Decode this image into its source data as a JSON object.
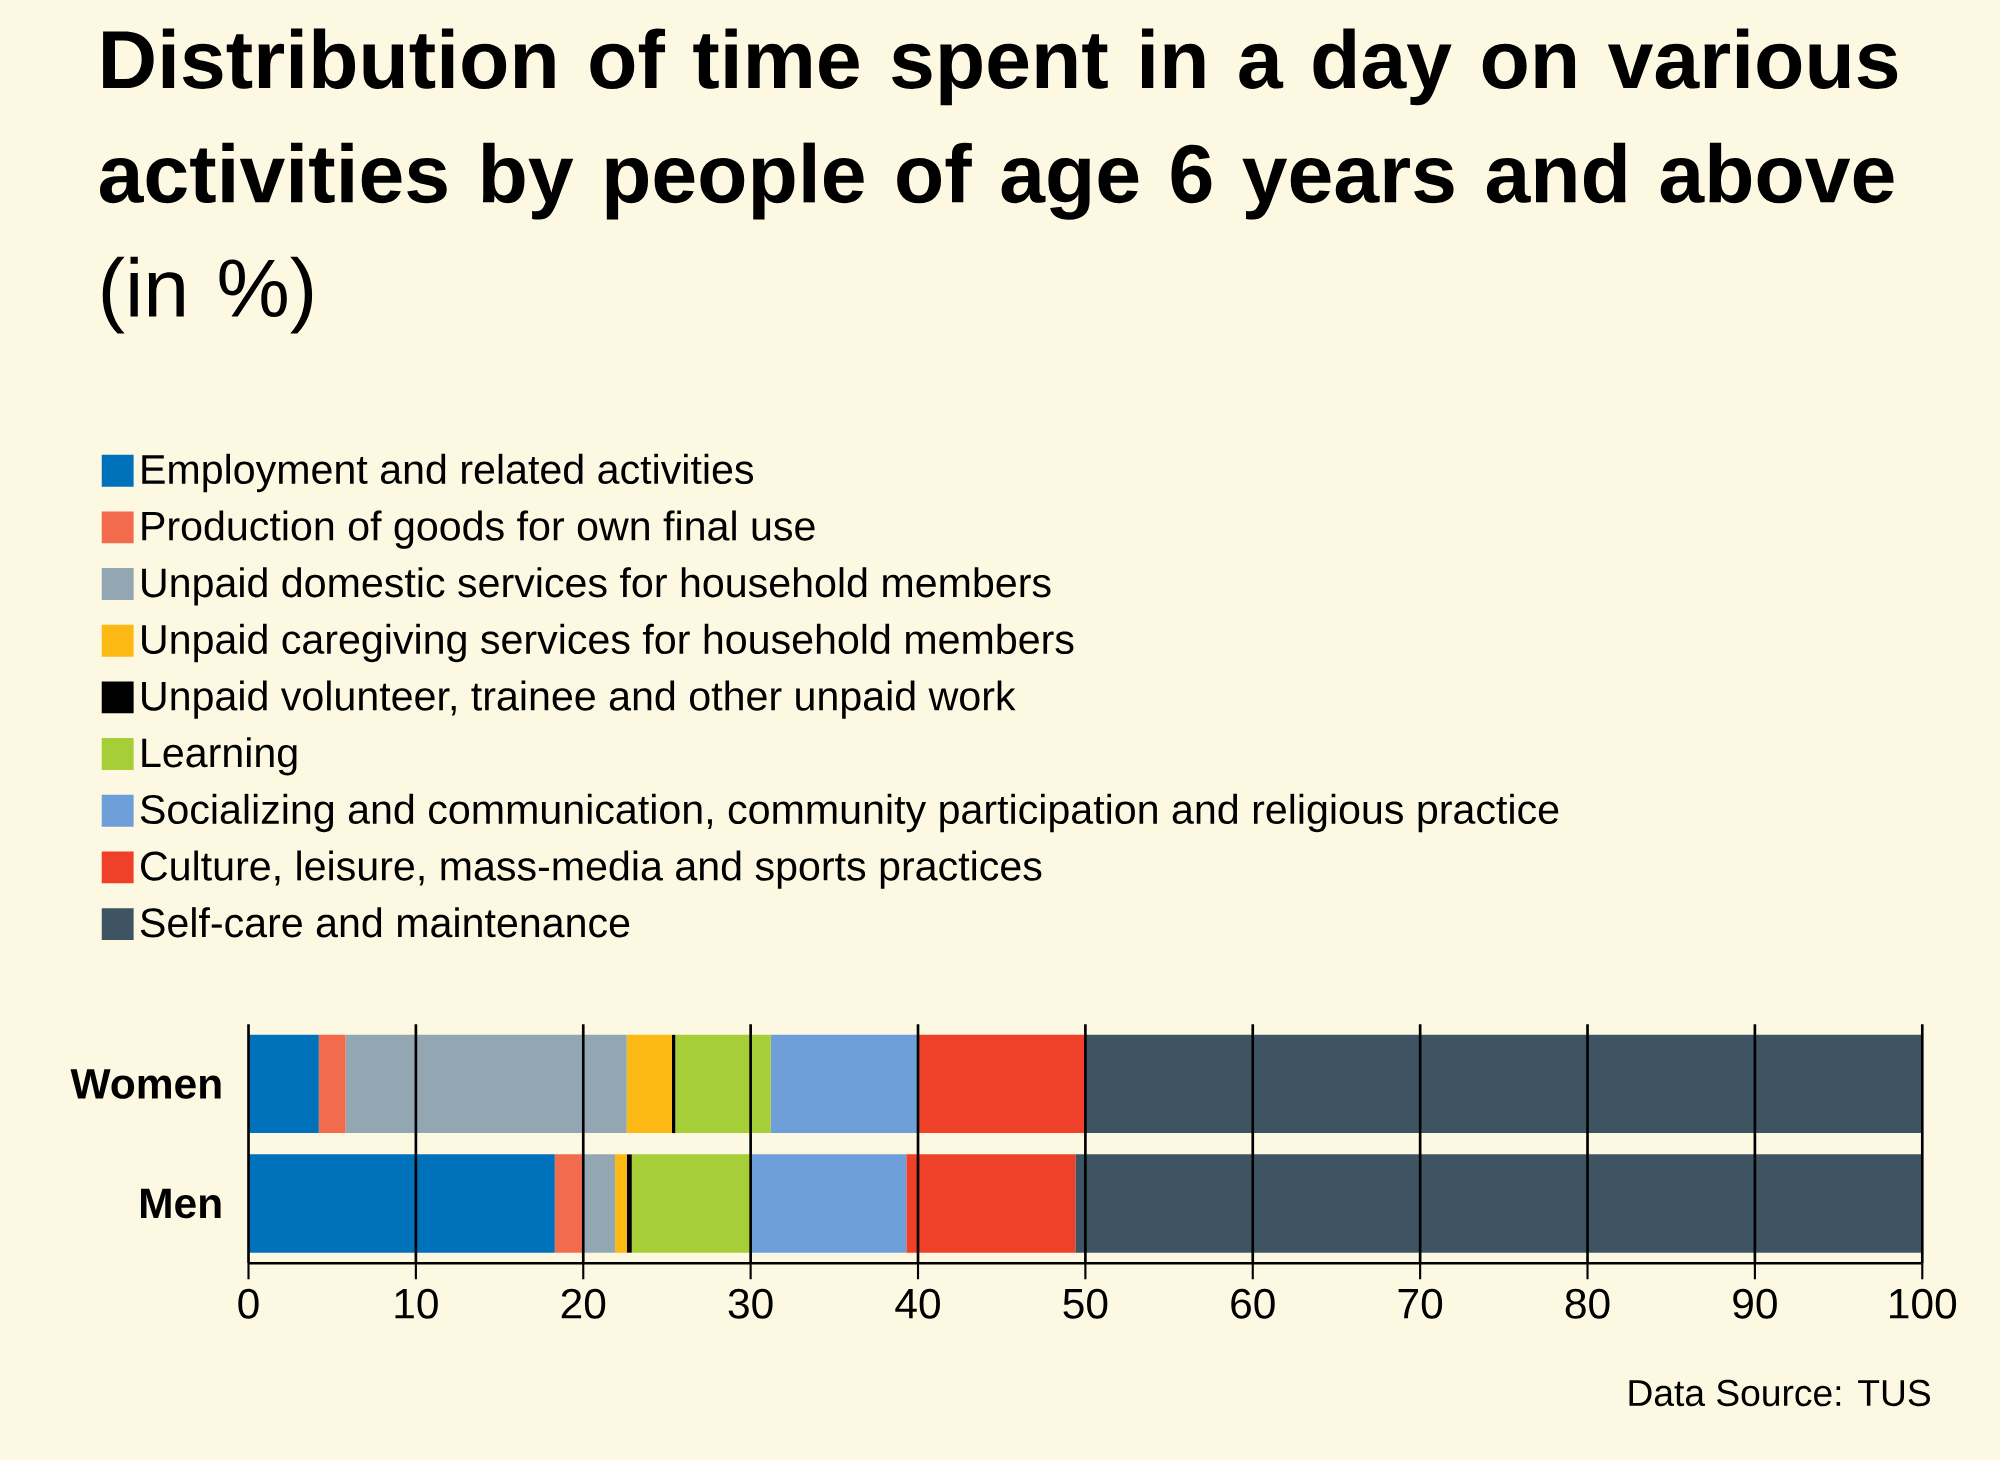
{
  "chart_data": {
    "type": "bar",
    "orientation": "horizontal",
    "stacked": true,
    "title": "**Distribution of time spent in a day on various activities by people of age 6 years and above** (in %)",
    "categories": [
      "Women",
      "Men"
    ],
    "series": [
      {
        "name": "Employment and related activities",
        "color": "#0072bb",
        "values": [
          4.2,
          18.3
        ]
      },
      {
        "name": "Production of goods for own final use",
        "color": "#f26b4d",
        "values": [
          1.6,
          1.7
        ]
      },
      {
        "name": "Unpaid domestic services for household members",
        "color": "#93a7b3",
        "values": [
          16.8,
          1.9
        ]
      },
      {
        "name": "Unpaid caregiving services for household members",
        "color": "#fcb813",
        "values": [
          2.7,
          0.7
        ]
      },
      {
        "name": "Unpaid volunteer, trainee and other unpaid work",
        "color": "#000000",
        "values": [
          0.2,
          0.3
        ]
      },
      {
        "name": "Learning",
        "color": "#a6ce39",
        "values": [
          5.7,
          7.1
        ]
      },
      {
        "name": "Socializing and communication, community participation and religious practice",
        "color": "#6f9fd8",
        "values": [
          8.8,
          9.3
        ]
      },
      {
        "name": "Culture, leisure, mass-media and sports practices",
        "color": "#ef4129",
        "values": [
          10.0,
          10.1
        ]
      },
      {
        "name": "Self-care and maintenance",
        "color": "#3e5463",
        "values": [
          50.0,
          50.6
        ]
      }
    ],
    "xlim": [
      0,
      100
    ],
    "xticks": [
      0,
      10,
      20,
      30,
      40,
      50,
      60,
      70,
      80,
      90,
      100
    ],
    "grid": "x",
    "legend": "top",
    "annotations": [
      "Data Source: TUS"
    ]
  }
}
